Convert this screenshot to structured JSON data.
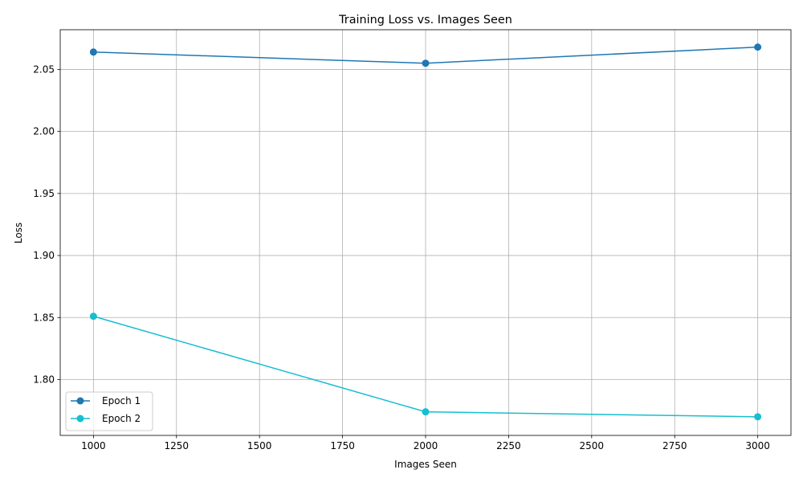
{
  "chart_data": {
    "type": "line",
    "title": "Training Loss vs. Images Seen",
    "xlabel": "Images Seen",
    "ylabel": "Loss",
    "x": [
      1000,
      2000,
      3000
    ],
    "xlim": [
      900,
      3100
    ],
    "ylim": [
      1.755,
      2.082
    ],
    "xticks": [
      1000,
      1250,
      1500,
      1750,
      2000,
      2250,
      2500,
      2750,
      3000
    ],
    "yticks": [
      1.8,
      1.85,
      1.9,
      1.95,
      2.0,
      2.05
    ],
    "ytick_labels": [
      "1.80",
      "1.85",
      "1.90",
      "1.95",
      "2.00",
      "2.05"
    ],
    "grid": true,
    "legend_position": "lower-left",
    "series": [
      {
        "name": "Epoch 1",
        "color": "#1f77b4",
        "values": [
          2.064,
          2.055,
          2.068
        ]
      },
      {
        "name": "Epoch 2",
        "color": "#17becf",
        "values": [
          1.851,
          1.774,
          1.77
        ]
      }
    ]
  }
}
